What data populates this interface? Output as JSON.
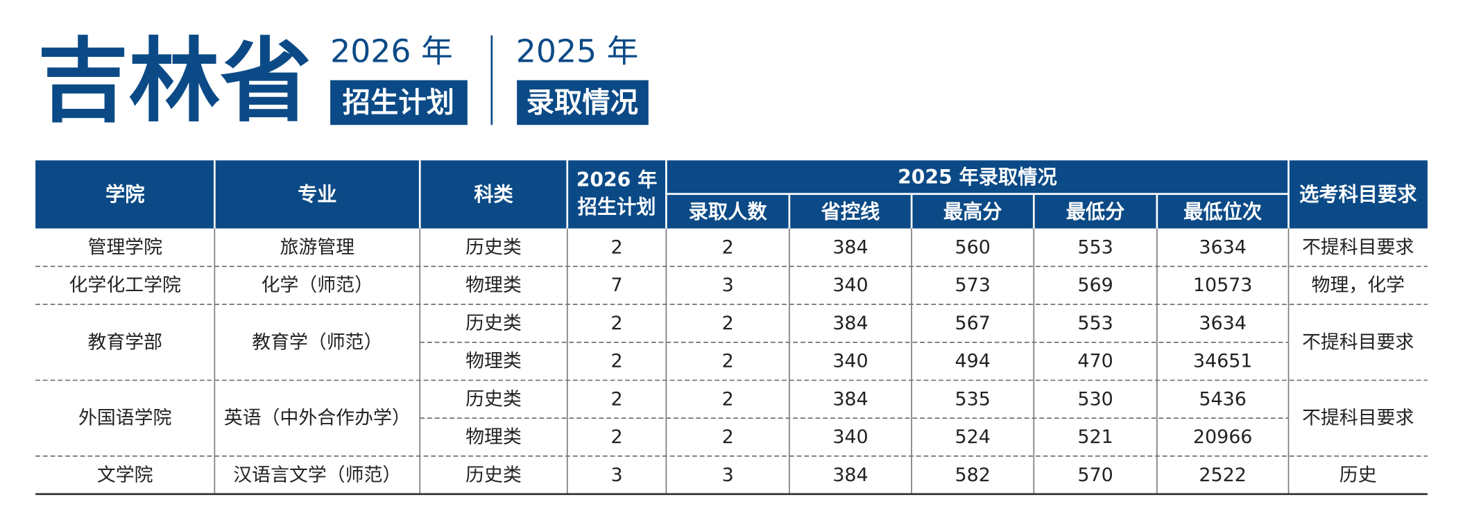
{
  "header": {
    "province": "吉林省",
    "plan_year": "2026 年",
    "plan_label": "招生计划",
    "admission_year": "2025 年",
    "admission_label": "录取情况"
  },
  "table": {
    "columns": {
      "college": "学院",
      "major": "专业",
      "category": "科类",
      "plan": [
        "2026 年",
        "招生计划"
      ],
      "admission": "2025 年录取情况",
      "admitted": "录取人数",
      "control_line": "省控线",
      "max": "最高分",
      "min": "最低分",
      "min_rank": "最低位次",
      "requirement": "选考科目要求"
    },
    "groups": [
      {
        "college": "管理学院",
        "major": "旅游管理",
        "requirement": "不提科目要求",
        "rows": [
          [
            "历史类",
            2,
            2,
            384,
            560,
            553,
            3634
          ]
        ]
      },
      {
        "college": "化学化工学院",
        "major": "化学（师范）",
        "requirement": "物理，化学",
        "rows": [
          [
            "物理类",
            7,
            3,
            340,
            573,
            569,
            10573
          ]
        ]
      },
      {
        "college": "教育学部",
        "major": "教育学（师范）",
        "requirement": "不提科目要求",
        "rows": [
          [
            "历史类",
            2,
            2,
            384,
            567,
            553,
            3634
          ],
          [
            "物理类",
            2,
            2,
            340,
            494,
            470,
            34651
          ]
        ]
      },
      {
        "college": "外国语学院",
        "major": "英语（中外合作办学）",
        "requirement": "不提科目要求",
        "rows": [
          [
            "历史类",
            2,
            2,
            384,
            535,
            530,
            5436
          ],
          [
            "物理类",
            2,
            2,
            340,
            524,
            521,
            20966
          ]
        ]
      },
      {
        "college": "文学院",
        "major": "汉语言文学（师范）",
        "requirement": "历史",
        "rows": [
          [
            "历史类",
            3,
            3,
            384,
            582,
            570,
            2522
          ]
        ]
      }
    ]
  }
}
